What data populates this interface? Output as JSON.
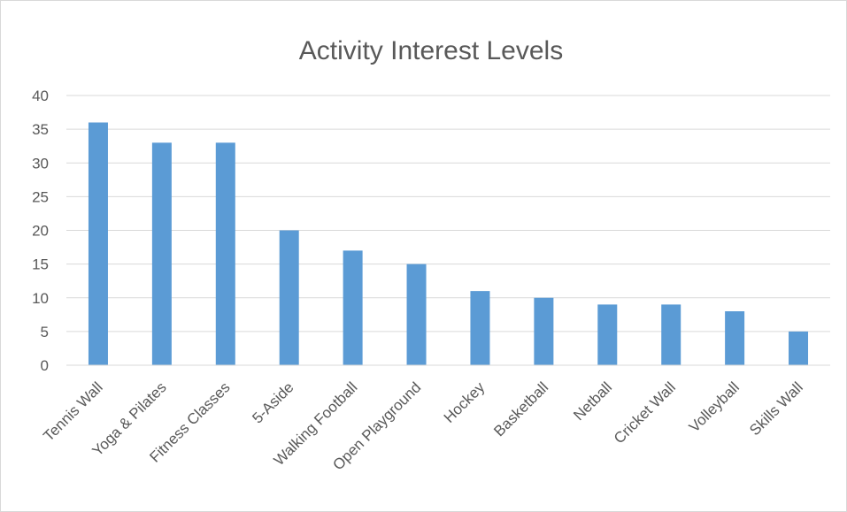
{
  "chart_data": {
    "type": "bar",
    "title": "Activity Interest Levels",
    "xlabel": "",
    "ylabel": "",
    "ylim": [
      0,
      40
    ],
    "yticks": [
      0,
      5,
      10,
      15,
      20,
      25,
      30,
      35,
      40
    ],
    "grid": true,
    "legend": "none",
    "bar_color": "#5b9bd5",
    "categories": [
      "Tennis Wall",
      "Yoga & Pilates",
      "Fitness Classes",
      "5-Aside",
      "Walking Football",
      "Open Playground",
      "Hockey",
      "Basketball",
      "Netball",
      "Cricket Wall",
      "Volleyball",
      "Skills Wall"
    ],
    "values": [
      36,
      33,
      33,
      20,
      17,
      15,
      11,
      10,
      9,
      9,
      8,
      5
    ]
  }
}
